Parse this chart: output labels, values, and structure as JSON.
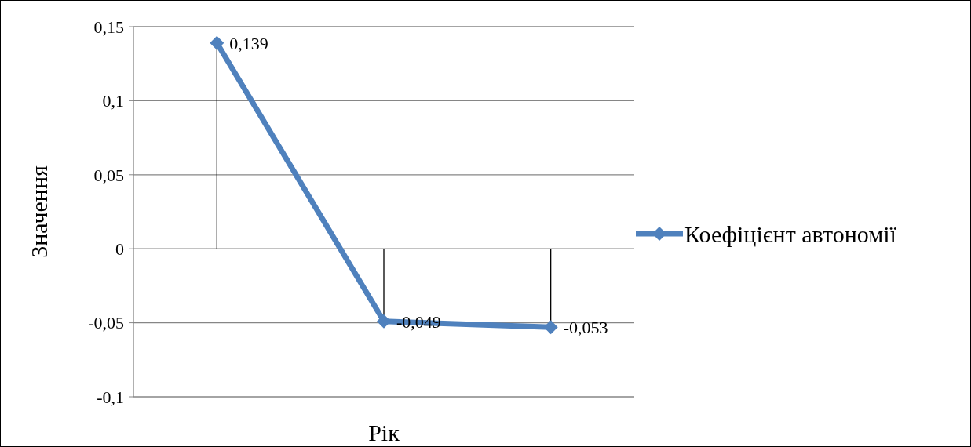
{
  "chart_data": {
    "type": "line",
    "xlabel": "Рік",
    "ylabel": "Значення",
    "categories": [
      null,
      null,
      null
    ],
    "series": [
      {
        "name": "Коефіцієнт автономії",
        "color": "#4f81bd",
        "values": [
          0.139,
          -0.049,
          -0.053
        ],
        "value_labels": [
          "0,139",
          "-0,049",
          "-0,053"
        ]
      }
    ],
    "ylim": [
      -0.1,
      0.15
    ],
    "yticks": [
      {
        "value": -0.1,
        "label": "-0,1"
      },
      {
        "value": -0.05,
        "label": "-0,05"
      },
      {
        "value": 0,
        "label": "0"
      },
      {
        "value": 0.05,
        "label": "0,05"
      },
      {
        "value": 0.1,
        "label": "0,1"
      },
      {
        "value": 0.15,
        "label": "0,15"
      }
    ],
    "grid": "y",
    "legend": "right",
    "marker": "diamond",
    "line_style": "solid"
  }
}
